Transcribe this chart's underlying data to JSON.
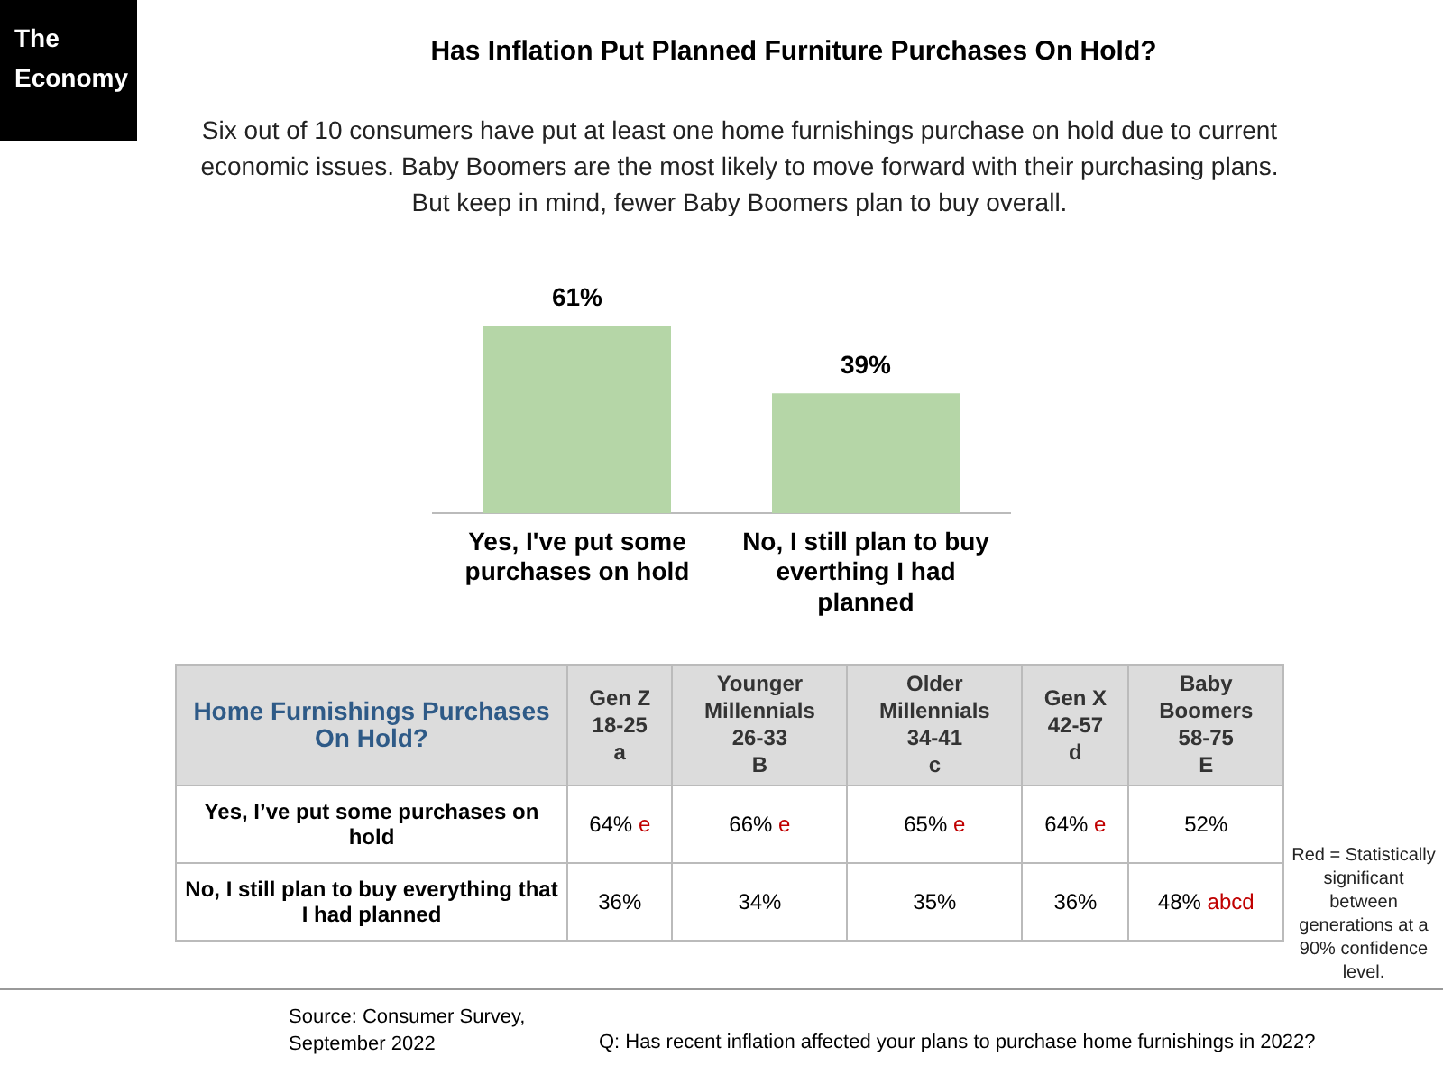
{
  "chart_data": [
    {
      "type": "bar",
      "title": "Has Inflation Put Planned Furniture Purchases On Hold?",
      "subtitle": "Six out of 10 consumers have put at least one home furnishings purchase on hold due to current economic issues. Baby Boomers are the most likely to move forward with their purchasing plans. But keep in mind, fewer Baby Boomers plan to buy overall.",
      "categories": [
        "Yes, I've put some purchases on hold",
        "No, I still plan to buy everthing I had planned"
      ],
      "values": [
        61,
        39
      ],
      "value_labels": [
        "61%",
        "39%"
      ],
      "color": "#b5d6a7",
      "tick_labels": "x",
      "annotations": [
        "The Economy",
        "Source: Consumer Survey, September 2022",
        "Q: Has recent inflation affected your plans to purchase home furnishings in 2022?",
        "Red = Statistically significant between generations at a 90% confidence level."
      ]
    },
    {
      "type": "heatmap",
      "title": "Home Furnishings Purchases On Hold?",
      "categories": [
        "Gen Z\n18-25\na",
        "Younger\nMillennials\n26-33\nB",
        "Older\nMillennials\n34-41\nc",
        "Gen X\n42-57\nd",
        "Baby\nBoomers\n58-75\nE"
      ],
      "y_categories": [
        "Yes, I’ve put some purchases on hold",
        "No, I still plan to buy everything that I had planned"
      ],
      "cells": [
        [
          64,
          66,
          65,
          64,
          52
        ],
        [
          36,
          34,
          35,
          36,
          48
        ]
      ],
      "cell_labels": [
        [
          "64% e",
          "66% e",
          "65% e",
          "64% e",
          "52%"
        ],
        [
          "36%",
          "34%",
          "35%",
          "36%",
          "48% abcd"
        ]
      ]
    }
  ]
}
